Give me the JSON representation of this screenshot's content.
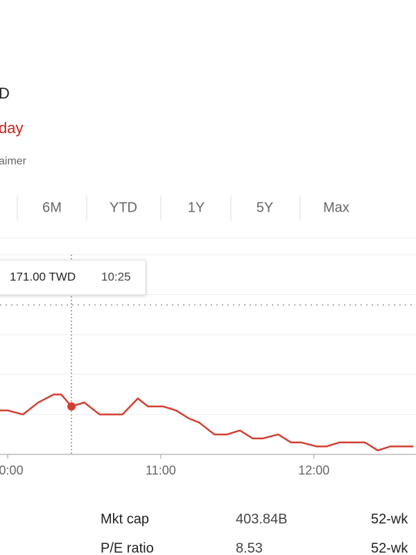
{
  "header": {
    "currency_fragment": "D",
    "change_fragment": "day",
    "disclaimer_fragment": "aimer"
  },
  "range_tabs": [
    "6M",
    "YTD",
    "1Y",
    "5Y",
    "Max"
  ],
  "chart_data": {
    "type": "line",
    "x": [
      "09:57",
      "10:00",
      "10:06",
      "10:12",
      "10:18",
      "10:21",
      "10:25",
      "10:30",
      "10:36",
      "10:45",
      "10:51",
      "10:55",
      "11:01",
      "11:06",
      "11:11",
      "11:15",
      "11:21",
      "11:26",
      "11:31",
      "11:36",
      "11:40",
      "11:46",
      "11:51",
      "11:55",
      "12:01",
      "12:05",
      "12:10",
      "12:20",
      "12:25",
      "12:30",
      "12:39"
    ],
    "series": [
      {
        "color": "#d23f31",
        "values": [
          170.5,
          170.5,
          170.0,
          171.5,
          172.5,
          172.5,
          171.0,
          171.5,
          170.0,
          170.0,
          172.0,
          171.0,
          171.0,
          170.5,
          169.5,
          169.0,
          167.5,
          167.5,
          168.0,
          167.0,
          167.0,
          167.5,
          166.5,
          166.5,
          166.0,
          166.0,
          166.5,
          166.5,
          165.5,
          166.0,
          166.0
        ]
      }
    ],
    "xlim": [
      "09:57",
      "12:40"
    ],
    "xticks": [
      "10:00",
      "11:00",
      "12:00"
    ],
    "ylim": [
      165,
      190
    ],
    "previous_close": 183.7,
    "highlight_index": 6,
    "tooltip": {
      "price": "171.00 TWD",
      "time": "10:25"
    }
  },
  "stats": {
    "rows": [
      [
        "Mkt cap",
        "403.84B",
        "52-wk"
      ],
      [
        "P/E ratio",
        "8.53",
        "52-wk"
      ]
    ]
  }
}
